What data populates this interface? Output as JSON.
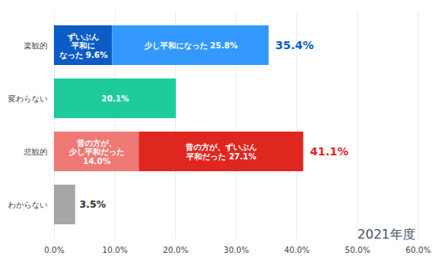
{
  "chart_data": {
    "type": "bar",
    "orientation": "horizontal",
    "stacked": true,
    "data_labels": true,
    "grid": true,
    "categories": [
      "楽観的",
      "変わらない",
      "悲観的",
      "わからない"
    ],
    "series": [
      {
        "values": [
          9.6,
          20.1,
          14.0,
          3.5
        ],
        "colors": [
          "#0b5cc4",
          "#1ecc9b",
          "#ef7a75",
          "#a6a6a6"
        ],
        "value_labels": [
          "ずいぶん\n平和に\nなった 9.6%",
          "20.1%",
          "昔の方が、\n少し平和だった\n14.0%",
          "3.5%"
        ]
      },
      {
        "values": [
          25.8,
          null,
          27.1,
          null
        ],
        "colors": [
          "#3399ff",
          null,
          "#e0271f",
          null
        ],
        "value_labels": [
          "少し平和になった 25.8%",
          null,
          "昔の方が、ずいぶん\n平和だった 27.1%",
          null
        ]
      }
    ],
    "totals": [
      35.4,
      null,
      41.1,
      null
    ],
    "total_labels": [
      "35.4%",
      null,
      "41.1%",
      null
    ],
    "annotation": "2021年度",
    "xlim": [
      0,
      60
    ],
    "xticks": [
      {
        "value": 0,
        "label": "0.0%"
      },
      {
        "value": 10,
        "label": "10.0%"
      },
      {
        "value": 20,
        "label": "20.0%"
      },
      {
        "value": 30,
        "label": "30.0%"
      },
      {
        "value": 40,
        "label": "40.0%"
      },
      {
        "value": 50,
        "label": "50.0%"
      },
      {
        "value": 60,
        "label": "60.0%"
      }
    ]
  }
}
